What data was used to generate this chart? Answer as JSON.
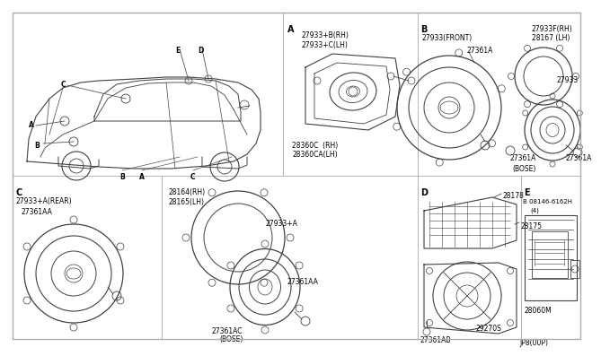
{
  "bg_color": "#ffffff",
  "line_color": "#404040",
  "text_color": "#000000",
  "footer": "JP8(00P)",
  "border_color": "#888888"
}
